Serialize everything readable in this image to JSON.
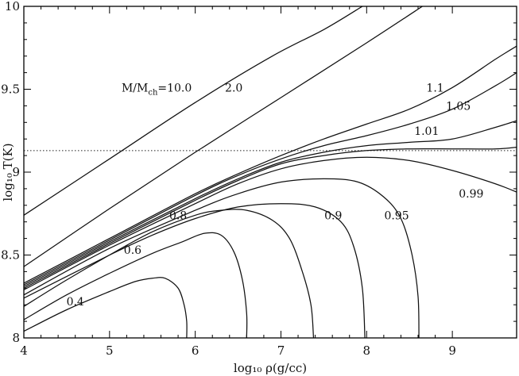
{
  "chart_data": {
    "type": "line",
    "xlabel": "log₁₀ ρ(g/cc)",
    "ylabel": "log₁₀ T(K)",
    "xlim": [
      4,
      9.75
    ],
    "ylim": [
      8,
      10
    ],
    "x_ticks": [
      "4",
      "5",
      "6",
      "7",
      "8",
      "9"
    ],
    "y_ticks": [
      "8",
      "8.5",
      "9",
      "9.5",
      "10"
    ],
    "reference_line": {
      "y": 9.13,
      "style": "dotted"
    },
    "legend_prefix": "M/M",
    "legend_subscript": "ch",
    "series": [
      {
        "name": "=10.0",
        "label_pos": [
          5.55,
          9.51
        ],
        "points": [
          [
            4,
            8.74
          ],
          [
            5,
            9.08
          ],
          [
            6,
            9.42
          ],
          [
            6.9,
            9.7
          ],
          [
            7.5,
            9.86
          ],
          [
            7.95,
            10.0
          ]
        ]
      },
      {
        "name": "2.0",
        "label_pos": [
          6.45,
          9.51
        ],
        "points": [
          [
            4,
            8.43
          ],
          [
            5,
            8.78
          ],
          [
            6,
            9.12
          ],
          [
            7,
            9.45
          ],
          [
            8,
            9.78
          ],
          [
            8.65,
            10.0
          ]
        ]
      },
      {
        "name": "1.1",
        "label_pos": [
          8.8,
          9.51
        ],
        "points": [
          [
            4,
            8.33
          ],
          [
            5,
            8.6
          ],
          [
            6,
            8.87
          ],
          [
            6.5,
            8.99
          ],
          [
            7,
            9.1
          ],
          [
            7.5,
            9.2
          ],
          [
            8,
            9.29
          ],
          [
            8.5,
            9.38
          ],
          [
            9,
            9.51
          ],
          [
            9.5,
            9.68
          ],
          [
            9.75,
            9.76
          ]
        ]
      },
      {
        "name": "1.05",
        "label_pos": [
          9.07,
          9.4
        ],
        "points": [
          [
            4,
            8.32
          ],
          [
            5,
            8.59
          ],
          [
            6,
            8.86
          ],
          [
            6.5,
            8.98
          ],
          [
            7,
            9.08
          ],
          [
            7.5,
            9.16
          ],
          [
            8,
            9.22
          ],
          [
            8.5,
            9.29
          ],
          [
            9,
            9.38
          ],
          [
            9.5,
            9.52
          ],
          [
            9.75,
            9.6
          ]
        ]
      },
      {
        "name": "1.01",
        "label_pos": [
          8.7,
          9.25
        ],
        "points": [
          [
            4,
            8.31
          ],
          [
            5,
            8.58
          ],
          [
            6,
            8.84
          ],
          [
            6.5,
            8.96
          ],
          [
            7,
            9.06
          ],
          [
            7.5,
            9.12
          ],
          [
            8,
            9.16
          ],
          [
            8.5,
            9.18
          ],
          [
            9,
            9.2
          ],
          [
            9.5,
            9.27
          ],
          [
            9.75,
            9.31
          ]
        ]
      },
      {
        "name": "",
        "label_pos": null,
        "points": [
          [
            4,
            8.3
          ],
          [
            5,
            8.57
          ],
          [
            6,
            8.83
          ],
          [
            6.5,
            8.95
          ],
          [
            7,
            9.05
          ],
          [
            7.5,
            9.1
          ],
          [
            8,
            9.13
          ],
          [
            8.5,
            9.14
          ],
          [
            9,
            9.14
          ],
          [
            9.5,
            9.14
          ],
          [
            9.75,
            9.15
          ]
        ]
      },
      {
        "name": "0.99",
        "label_pos": [
          9.22,
          8.87
        ],
        "points": [
          [
            4,
            8.29
          ],
          [
            5,
            8.56
          ],
          [
            6,
            8.81
          ],
          [
            6.5,
            8.93
          ],
          [
            7,
            9.02
          ],
          [
            7.5,
            9.07
          ],
          [
            8,
            9.09
          ],
          [
            8.5,
            9.07
          ],
          [
            9,
            9.01
          ],
          [
            9.5,
            8.93
          ],
          [
            9.75,
            8.88
          ]
        ]
      },
      {
        "name": "0.95",
        "label_pos": [
          8.35,
          8.74
        ],
        "points": [
          [
            4,
            8.26
          ],
          [
            5,
            8.54
          ],
          [
            6,
            8.77
          ],
          [
            6.5,
            8.87
          ],
          [
            7,
            8.94
          ],
          [
            7.5,
            8.96
          ],
          [
            7.9,
            8.94
          ],
          [
            8.2,
            8.85
          ],
          [
            8.4,
            8.72
          ],
          [
            8.53,
            8.5
          ],
          [
            8.6,
            8.25
          ],
          [
            8.61,
            8.0
          ]
        ]
      },
      {
        "name": "0.9",
        "label_pos": [
          7.61,
          8.74
        ],
        "points": [
          [
            4,
            8.24
          ],
          [
            5,
            8.5
          ],
          [
            5.5,
            8.62
          ],
          [
            6,
            8.72
          ],
          [
            6.5,
            8.79
          ],
          [
            7,
            8.81
          ],
          [
            7.4,
            8.79
          ],
          [
            7.7,
            8.7
          ],
          [
            7.85,
            8.55
          ],
          [
            7.95,
            8.3
          ],
          [
            7.98,
            8.0
          ]
        ]
      },
      {
        "name": "0.8",
        "label_pos": [
          5.8,
          8.74
        ],
        "points": [
          [
            4,
            8.19
          ],
          [
            4.5,
            8.35
          ],
          [
            5,
            8.5
          ],
          [
            5.5,
            8.64
          ],
          [
            6,
            8.74
          ],
          [
            6.3,
            8.77
          ],
          [
            6.6,
            8.77
          ],
          [
            6.9,
            8.71
          ],
          [
            7.1,
            8.6
          ],
          [
            7.25,
            8.4
          ],
          [
            7.35,
            8.2
          ],
          [
            7.38,
            8.0
          ]
        ]
      },
      {
        "name": "0.6",
        "label_pos": [
          5.27,
          8.53
        ],
        "points": [
          [
            4,
            8.11
          ],
          [
            4.5,
            8.26
          ],
          [
            5,
            8.39
          ],
          [
            5.5,
            8.51
          ],
          [
            5.85,
            8.58
          ],
          [
            6.1,
            8.63
          ],
          [
            6.3,
            8.62
          ],
          [
            6.45,
            8.52
          ],
          [
            6.55,
            8.35
          ],
          [
            6.6,
            8.15
          ],
          [
            6.6,
            8.0
          ]
        ]
      },
      {
        "name": "0.4",
        "label_pos": [
          4.6,
          8.22
        ],
        "points": [
          [
            4,
            8.04
          ],
          [
            4.5,
            8.17
          ],
          [
            5,
            8.28
          ],
          [
            5.3,
            8.34
          ],
          [
            5.5,
            8.36
          ],
          [
            5.65,
            8.36
          ],
          [
            5.8,
            8.3
          ],
          [
            5.87,
            8.2
          ],
          [
            5.9,
            8.1
          ],
          [
            5.9,
            8.0
          ]
        ]
      }
    ]
  }
}
